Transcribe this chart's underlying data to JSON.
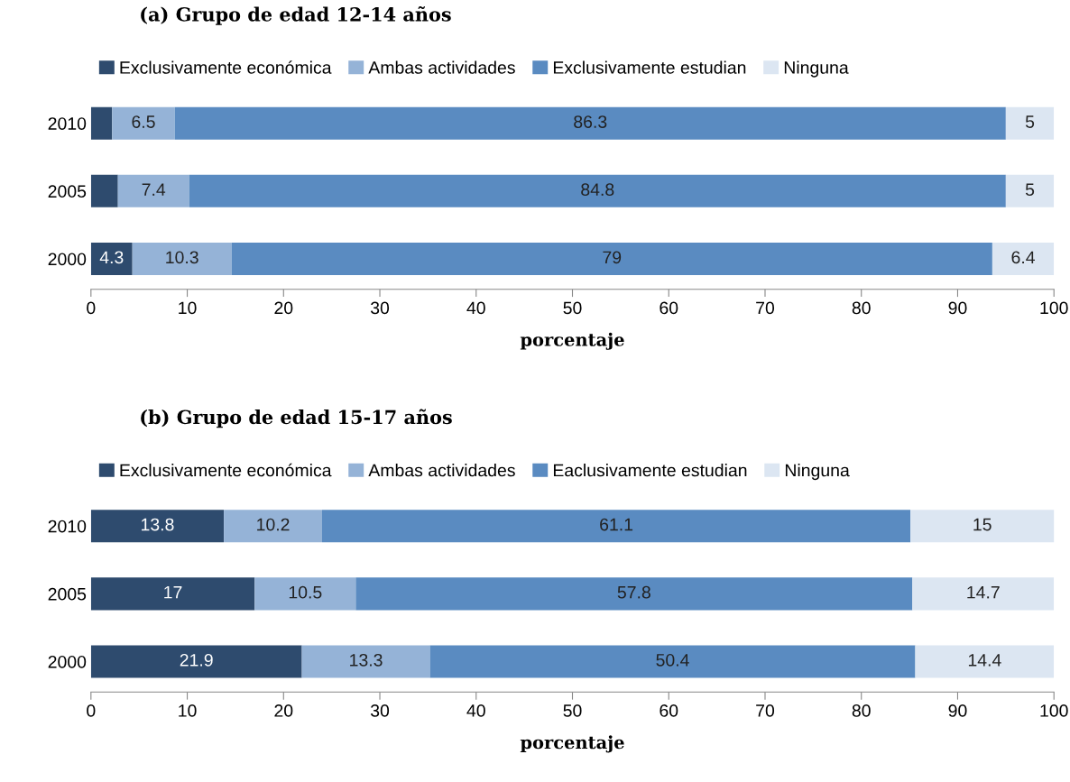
{
  "chart_data": [
    {
      "type": "bar",
      "orientation": "horizontal",
      "stacked": true,
      "title": "(a) Grupo de edad 12-14 años",
      "xlabel": "porcentaje",
      "categories": [
        "2010",
        "2005",
        "2000"
      ],
      "xlim": [
        0,
        100
      ],
      "xticks": [
        0,
        10,
        20,
        30,
        40,
        50,
        60,
        70,
        80,
        90,
        100
      ],
      "legend": "top",
      "grid": false,
      "series": [
        {
          "name": "Exclusivamente económica",
          "color": "#2e4b6e",
          "values": [
            2.2,
            2.8,
            4.3
          ],
          "value_labels": [
            null,
            null,
            "4.3"
          ]
        },
        {
          "name": "Ambas actividades",
          "color": "#95b3d7",
          "values": [
            6.5,
            7.4,
            10.3
          ],
          "value_labels": [
            "6.5",
            "7.4",
            "10.3"
          ]
        },
        {
          "name": "Exclusivamente estudian",
          "color": "#5a8bc1",
          "values": [
            86.3,
            84.8,
            79
          ],
          "value_labels": [
            "86.3",
            "84.8",
            "79"
          ]
        },
        {
          "name": "Ninguna",
          "color": "#dce6f2",
          "values": [
            5,
            5,
            6.4
          ],
          "value_labels": [
            "5",
            "5",
            "6.4"
          ]
        }
      ]
    },
    {
      "type": "bar",
      "orientation": "horizontal",
      "stacked": true,
      "title": "(b) Grupo de edad 15-17 años",
      "xlabel": "porcentaje",
      "categories": [
        "2010",
        "2005",
        "2000"
      ],
      "xlim": [
        0,
        100
      ],
      "xticks": [
        0,
        10,
        20,
        30,
        40,
        50,
        60,
        70,
        80,
        90,
        100
      ],
      "legend": "top",
      "grid": false,
      "data_labels": true,
      "series": [
        {
          "name": "Exclusivamente económica",
          "color": "#2e4b6e",
          "values": [
            13.8,
            17,
            21.9
          ]
        },
        {
          "name": "Ambas actividades",
          "color": "#95b3d7",
          "values": [
            10.2,
            10.5,
            13.3
          ]
        },
        {
          "name": "Eaclusivamente estudian",
          "color": "#5a8bc1",
          "values": [
            61.1,
            57.8,
            50.4
          ]
        },
        {
          "name": "Ninguna",
          "color": "#dce6f2",
          "values": [
            15,
            14.7,
            14.4
          ]
        }
      ]
    }
  ]
}
